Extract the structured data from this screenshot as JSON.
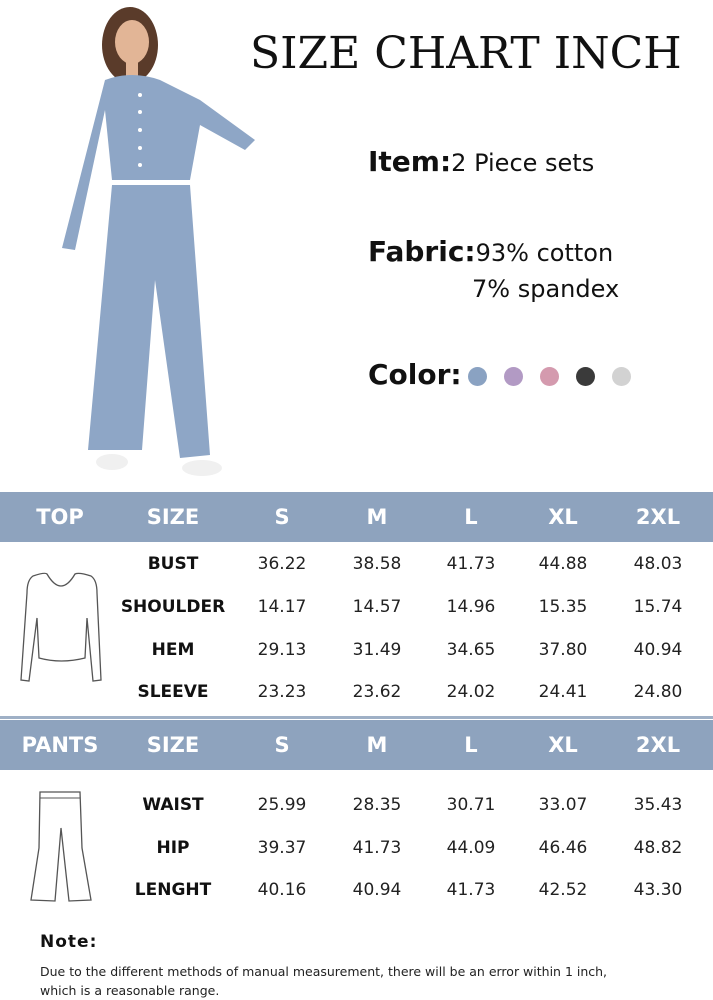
{
  "title": "SIZE CHART INCH",
  "item": {
    "label": "Item:",
    "value": "2 Piece sets"
  },
  "fabric": {
    "label": "Fabric:",
    "line1": "93% cotton",
    "line2": "7% spandex"
  },
  "color": {
    "label": "Color:",
    "swatches": [
      "#8aa2c2",
      "#b29ac4",
      "#d49aae",
      "#3a3a3a",
      "#d2d2d2"
    ]
  },
  "header_color": "#8ea3be",
  "top_table": {
    "headers": [
      "TOP",
      "SIZE",
      "S",
      "M",
      "L",
      "XL",
      "2XL"
    ],
    "rows": [
      {
        "label": "BUST",
        "values": [
          "36.22",
          "38.58",
          "41.73",
          "44.88",
          "48.03"
        ]
      },
      {
        "label": "SHOULDER",
        "values": [
          "14.17",
          "14.57",
          "14.96",
          "15.35",
          "15.74"
        ]
      },
      {
        "label": "HEM",
        "values": [
          "29.13",
          "31.49",
          "34.65",
          "37.80",
          "40.94"
        ]
      },
      {
        "label": "SLEEVE",
        "values": [
          "23.23",
          "23.62",
          "24.02",
          "24.41",
          "24.80"
        ]
      }
    ]
  },
  "pants_table": {
    "headers": [
      "PANTS",
      "SIZE",
      "S",
      "M",
      "L",
      "XL",
      "2XL"
    ],
    "rows": [
      {
        "label": "WAIST",
        "values": [
          "25.99",
          "28.35",
          "30.71",
          "33.07",
          "35.43"
        ]
      },
      {
        "label": "HIP",
        "values": [
          "39.37",
          "41.73",
          "44.09",
          "46.46",
          "48.82"
        ]
      },
      {
        "label": "LENGHT",
        "values": [
          "40.16",
          "40.94",
          "41.73",
          "42.52",
          "43.30"
        ]
      }
    ]
  },
  "note": {
    "heading": "Note:",
    "line1": "Due to the different methods of manual measurement, there will be an error within 1 inch,",
    "line2": "which is a reasonable range."
  }
}
